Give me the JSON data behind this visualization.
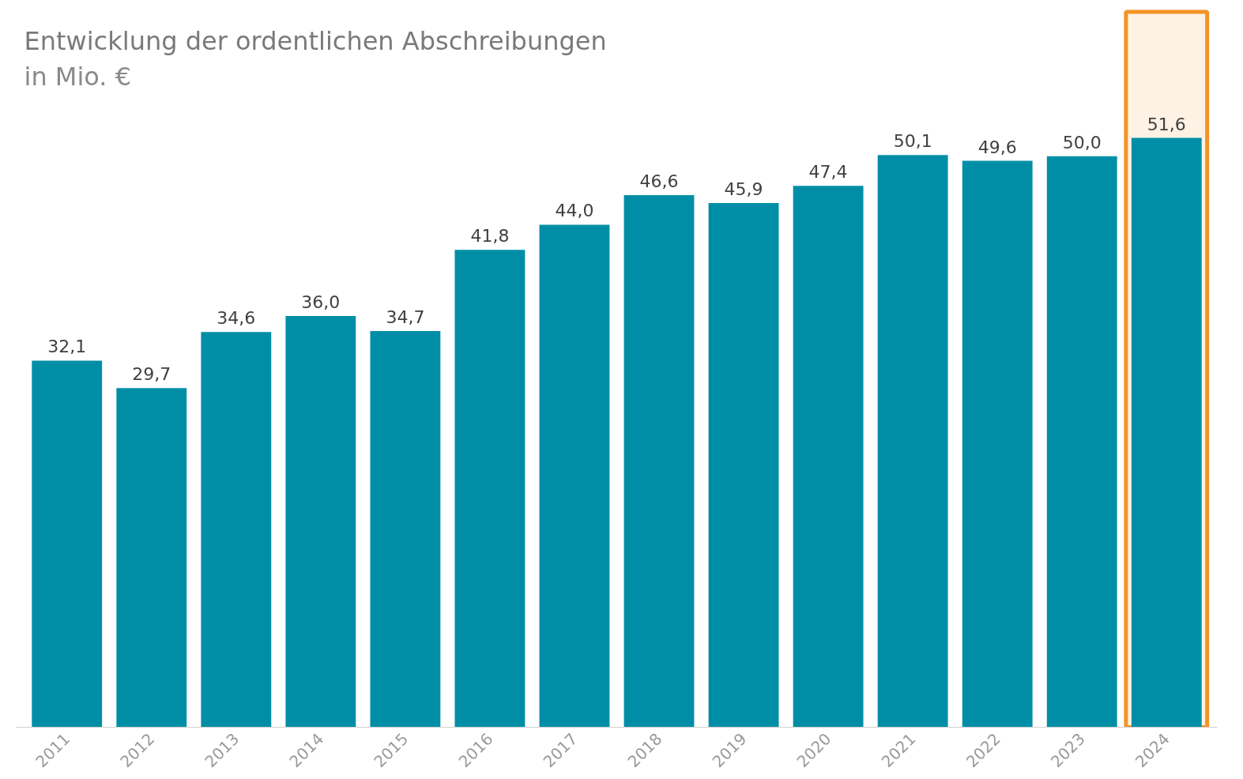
{
  "chart_data": {
    "type": "bar",
    "title": "Entwicklung der ordentlichen Abschreibungen",
    "subtitle": "in Mio. €",
    "categories": [
      "2011",
      "2012",
      "2013",
      "2014",
      "2015",
      "2016",
      "2017",
      "2018",
      "2019",
      "2020",
      "2021",
      "2022",
      "2023",
      "2024"
    ],
    "values": [
      32.1,
      29.7,
      34.6,
      36.0,
      34.7,
      41.8,
      44.0,
      46.6,
      45.9,
      47.4,
      50.1,
      49.6,
      50.0,
      51.6
    ],
    "value_labels": [
      "32,1",
      "29,7",
      "34,6",
      "36,0",
      "34,7",
      "41,8",
      "44,0",
      "46,6",
      "45,9",
      "47,4",
      "50,1",
      "49,6",
      "50,0",
      "51,6"
    ],
    "color": "#008ea6",
    "grid": false,
    "bands": [
      {
        "axis": "x",
        "from": "2024",
        "to": "2024",
        "color": "#f39325"
      }
    ]
  }
}
